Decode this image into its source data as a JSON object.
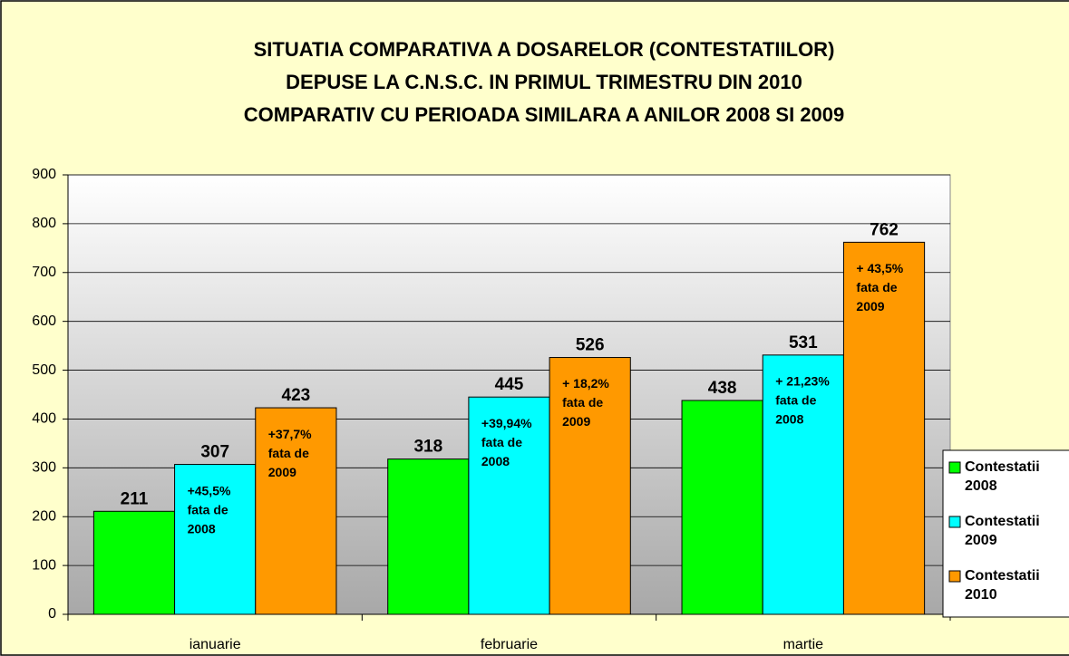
{
  "chart_data": {
    "type": "bar",
    "title": [
      "SITUATIA COMPARATIVA A DOSARELOR (CONTESTATIILOR)",
      "DEPUSE LA C.N.S.C. IN PRIMUL TRIMESTRU DIN 2010",
      "COMPARATIV CU PERIOADA SIMILARA A ANILOR 2008 SI 2009"
    ],
    "categories": [
      "ianuarie",
      "februarie",
      "martie"
    ],
    "series": [
      {
        "name": [
          "Contestatii",
          "2008"
        ],
        "color": "#00ff00",
        "values": [
          211,
          318,
          438
        ]
      },
      {
        "name": [
          "Contestatii",
          "2009"
        ],
        "color": "#00ffff",
        "values": [
          307,
          445,
          531
        ],
        "notes": [
          [
            "+45,5%",
            "fata de",
            "2008"
          ],
          [
            "+39,94%",
            "fata de",
            "2008"
          ],
          [
            "+ 21,23%",
            "fata de",
            "2008"
          ]
        ]
      },
      {
        "name": [
          "Contestatii",
          "2010"
        ],
        "color": "#ff9900",
        "values": [
          423,
          526,
          762
        ],
        "notes": [
          [
            "+37,7%",
            "fata de",
            "2009"
          ],
          [
            "+ 18,2%",
            "fata de",
            "2009"
          ],
          [
            "+ 43,5%",
            "fata de",
            "2009"
          ]
        ]
      }
    ],
    "ylim": [
      0,
      900
    ],
    "yticks": [
      0,
      100,
      200,
      300,
      400,
      500,
      600,
      700,
      800,
      900
    ],
    "grid": true,
    "legend": "right"
  }
}
